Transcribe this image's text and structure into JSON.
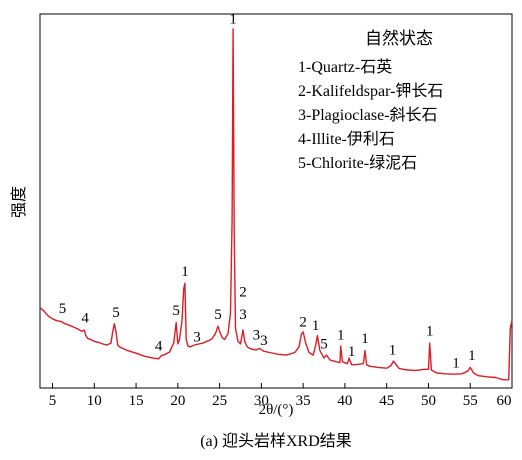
{
  "chart_data": {
    "type": "line",
    "title": "",
    "caption": "(a) 迎头岩样XRD结果",
    "xlabel": "2θ/(°)",
    "ylabel": "强度",
    "xlim": [
      3.5,
      60
    ],
    "ylim": [
      0,
      1.0
    ],
    "x_ticks": [
      5,
      10,
      15,
      20,
      25,
      30,
      35,
      40,
      45,
      50,
      55,
      60
    ],
    "x_tick_labels": [
      "5",
      "10",
      "15",
      "20",
      "25",
      "30",
      "35",
      "40",
      "45",
      "50",
      "55",
      "60"
    ],
    "y_ticks_shown": false,
    "grid": false,
    "line_color": "#dd1c24",
    "legend": {
      "title": "自然状态",
      "placement": "top-right",
      "entries": [
        "1-Quartz-石英",
        "2-Kalifeldspar-钾长石",
        "3-Plagioclase-斜长石",
        "4-Illite-伊利石",
        "5-Chlorite-绿泥石"
      ]
    },
    "series": [
      {
        "x": [
          3.5,
          4.0,
          4.5,
          5.0,
          5.5,
          6.0,
          6.5,
          7.0,
          7.5,
          8.0,
          8.5,
          8.8,
          9.0,
          9.2,
          9.5,
          10.0,
          10.5,
          11.0,
          11.5,
          12.0,
          12.2,
          12.4,
          12.6,
          12.8,
          13.0,
          13.5,
          14.0,
          15.0,
          16.0,
          17.0,
          17.7,
          18.0,
          18.5,
          19.0,
          19.5,
          19.8,
          20.0,
          20.2,
          20.5,
          20.7,
          20.85,
          21.0,
          21.2,
          21.5,
          22.0,
          23.0,
          24.0,
          24.5,
          24.8,
          25.0,
          25.3,
          25.6,
          26.0,
          26.3,
          26.5,
          26.62,
          26.75,
          26.9,
          27.2,
          27.5,
          27.8,
          28.0,
          28.3,
          28.7,
          29.0,
          29.4,
          29.8,
          30.3,
          31.0,
          32.0,
          33.0,
          34.0,
          34.5,
          34.8,
          35.0,
          35.3,
          35.7,
          36.2,
          36.5,
          36.7,
          37.0,
          37.5,
          37.8,
          38.2,
          39.0,
          39.4,
          39.5,
          39.7,
          40.3,
          40.5,
          40.8,
          41.5,
          42.2,
          42.4,
          42.6,
          43.0,
          44.0,
          45.0,
          45.5,
          45.8,
          46.5,
          47.5,
          48.5,
          49.5,
          50.0,
          50.15,
          50.35,
          51.0,
          52.0,
          53.0,
          54.0,
          54.7,
          55.0,
          55.4,
          56.0,
          57.0,
          58.0,
          59.0,
          59.6,
          59.8,
          60.0
        ],
        "y": [
          0.215,
          0.205,
          0.192,
          0.185,
          0.18,
          0.178,
          0.172,
          0.168,
          0.163,
          0.158,
          0.152,
          0.155,
          0.14,
          0.133,
          0.13,
          0.125,
          0.122,
          0.118,
          0.115,
          0.12,
          0.15,
          0.172,
          0.15,
          0.115,
          0.11,
          0.105,
          0.1,
          0.093,
          0.085,
          0.08,
          0.078,
          0.086,
          0.09,
          0.096,
          0.12,
          0.175,
          0.118,
          0.13,
          0.18,
          0.265,
          0.28,
          0.13,
          0.112,
          0.11,
          0.115,
          0.12,
          0.13,
          0.145,
          0.165,
          0.152,
          0.135,
          0.13,
          0.145,
          0.2,
          0.45,
          0.96,
          0.42,
          0.16,
          0.125,
          0.118,
          0.155,
          0.125,
          0.11,
          0.105,
          0.103,
          0.102,
          0.106,
          0.098,
          0.095,
          0.09,
          0.088,
          0.095,
          0.11,
          0.145,
          0.15,
          0.12,
          0.095,
          0.088,
          0.115,
          0.14,
          0.1,
          0.08,
          0.088,
          0.075,
          0.07,
          0.068,
          0.112,
          0.07,
          0.065,
          0.08,
          0.062,
          0.063,
          0.065,
          0.1,
          0.062,
          0.058,
          0.055,
          0.053,
          0.06,
          0.072,
          0.052,
          0.048,
          0.047,
          0.05,
          0.05,
          0.12,
          0.048,
          0.04,
          0.038,
          0.037,
          0.038,
          0.045,
          0.055,
          0.04,
          0.033,
          0.03,
          0.028,
          0.022,
          0.022,
          0.16,
          0.18
        ]
      }
    ],
    "peak_labels": [
      {
        "text": "5",
        "x": 6.2,
        "y": 0.2
      },
      {
        "text": "4",
        "x": 8.9,
        "y": 0.175
      },
      {
        "text": "5",
        "x": 12.6,
        "y": 0.19
      },
      {
        "text": "4",
        "x": 17.7,
        "y": 0.1
      },
      {
        "text": "5",
        "x": 19.8,
        "y": 0.195
      },
      {
        "text": "1",
        "x": 20.85,
        "y": 0.3
      },
      {
        "text": "3",
        "x": 22.3,
        "y": 0.125
      },
      {
        "text": "5",
        "x": 24.8,
        "y": 0.185
      },
      {
        "text": "1",
        "x": 26.62,
        "y": 0.975
      },
      {
        "text": "2",
        "x": 27.8,
        "y": 0.245
      },
      {
        "text": "3",
        "x": 27.8,
        "y": 0.185
      },
      {
        "text": "3",
        "x": 29.4,
        "y": 0.13
      },
      {
        "text": "3",
        "x": 30.3,
        "y": 0.115
      },
      {
        "text": "2",
        "x": 35.0,
        "y": 0.165
      },
      {
        "text": "1",
        "x": 36.5,
        "y": 0.155
      },
      {
        "text": "5",
        "x": 37.5,
        "y": 0.105
      },
      {
        "text": "1",
        "x": 39.5,
        "y": 0.13
      },
      {
        "text": "1",
        "x": 40.8,
        "y": 0.085
      },
      {
        "text": "1",
        "x": 42.4,
        "y": 0.12
      },
      {
        "text": "1",
        "x": 45.7,
        "y": 0.09
      },
      {
        "text": "1",
        "x": 50.15,
        "y": 0.14
      },
      {
        "text": "1",
        "x": 53.3,
        "y": 0.055
      },
      {
        "text": "1",
        "x": 55.2,
        "y": 0.075
      }
    ]
  }
}
